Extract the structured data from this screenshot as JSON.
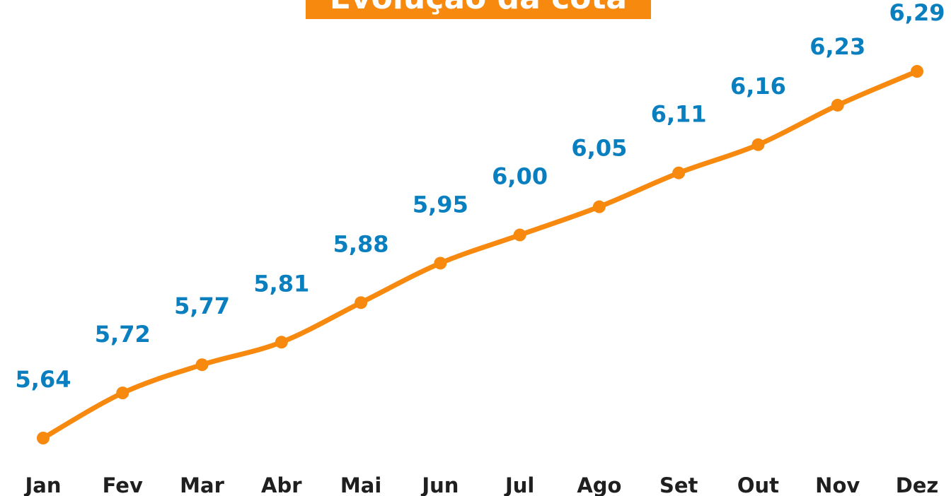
{
  "chart_data": {
    "type": "line",
    "title": "Evolução da cota",
    "categories": [
      "Jan",
      "Fev",
      "Mar",
      "Abr",
      "Mai",
      "Jun",
      "Jul",
      "Ago",
      "Set",
      "Out",
      "Nov",
      "Dez"
    ],
    "series": [
      {
        "name": "Cota",
        "color": "#f7890f",
        "values": [
          5.64,
          5.72,
          5.77,
          5.81,
          5.88,
          5.95,
          6.0,
          6.05,
          6.11,
          6.16,
          6.23,
          6.29
        ],
        "value_labels": [
          "5,64",
          "5,72",
          "5,77",
          "5,81",
          "5,88",
          "5,95",
          "6,00",
          "6,05",
          "6,11",
          "6,16",
          "6,23",
          "6,29"
        ]
      }
    ],
    "title_color": "#f7890f",
    "label_color": "#0a7fbf"
  }
}
